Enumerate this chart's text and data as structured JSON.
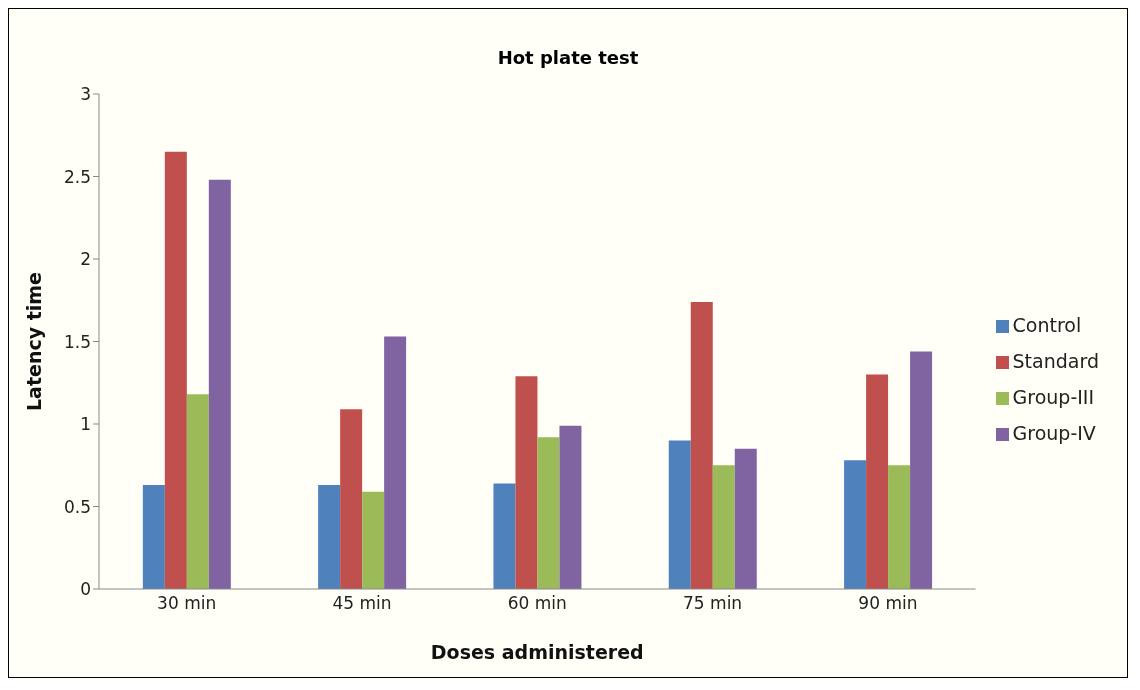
{
  "chart_data": {
    "type": "bar",
    "title": "Hot plate test",
    "xlabel": "Doses administered",
    "ylabel": "Latency time",
    "categories": [
      "30 min",
      "45 min",
      "60 min",
      "75 min",
      "90 min"
    ],
    "series": [
      {
        "name": "Control",
        "color": "#4f81bd",
        "values": [
          0.63,
          0.63,
          0.64,
          0.9,
          0.78
        ]
      },
      {
        "name": "Standard",
        "color": "#c0504d",
        "values": [
          2.65,
          1.09,
          1.29,
          1.74,
          1.3
        ]
      },
      {
        "name": "Group-III",
        "color": "#9bbb59",
        "values": [
          1.18,
          0.59,
          0.92,
          0.75,
          0.75
        ]
      },
      {
        "name": "Group-IV",
        "color": "#8064a2",
        "values": [
          2.48,
          1.53,
          0.99,
          0.85,
          1.44
        ]
      }
    ],
    "ylim": [
      0,
      3
    ],
    "yticks": [
      0,
      0.5,
      1,
      1.5,
      2,
      2.5,
      3
    ],
    "grid": false,
    "legend": "right"
  }
}
